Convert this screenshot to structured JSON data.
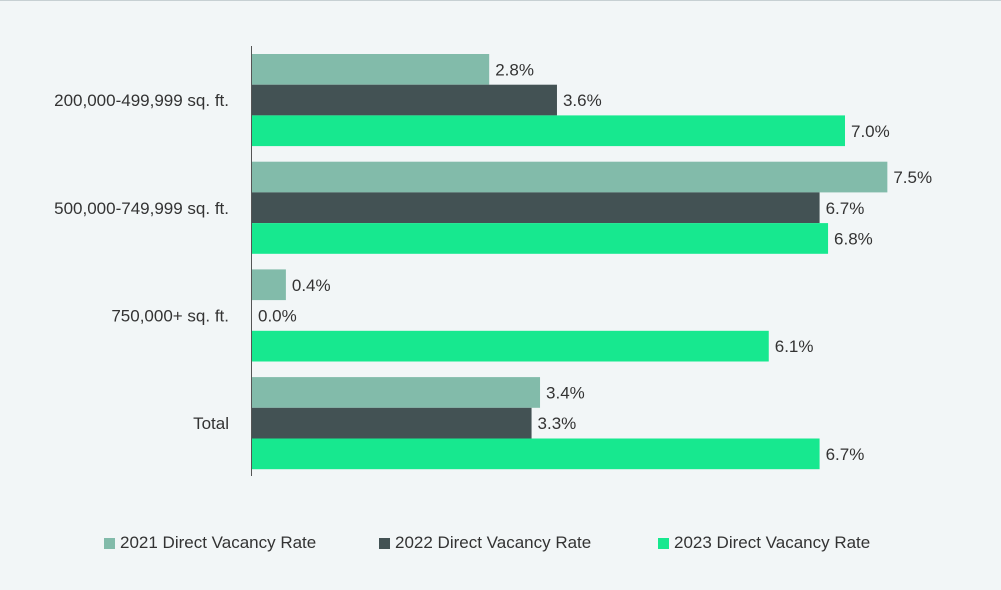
{
  "chart_data": {
    "type": "bar",
    "orientation": "horizontal",
    "categories": [
      "200,000-499,999 sq. ft.",
      "500,000-749,999 sq. ft.",
      "750,000+ sq. ft.",
      "Total"
    ],
    "series": [
      {
        "name": "2021 Direct Vacancy Rate",
        "values": [
          2.8,
          7.5,
          0.4,
          3.4
        ],
        "labels": [
          "2.8%",
          "7.5%",
          "0.4%",
          "3.4%"
        ],
        "color": "#82bbaa"
      },
      {
        "name": "2022 Direct Vacancy Rate",
        "values": [
          3.6,
          6.7,
          0.0,
          3.3
        ],
        "labels": [
          "3.6%",
          "6.7%",
          "0.0%",
          "3.3%"
        ],
        "color": "#435254"
      },
      {
        "name": "2023 Direct Vacancy Rate",
        "values": [
          7.0,
          6.8,
          6.1,
          6.7
        ],
        "labels": [
          "7.0%",
          "6.8%",
          "6.1%",
          "6.7%"
        ],
        "color": "#17e88f"
      }
    ],
    "xlim": [
      0,
      8
    ],
    "grid": false,
    "legend_position": "bottom"
  }
}
